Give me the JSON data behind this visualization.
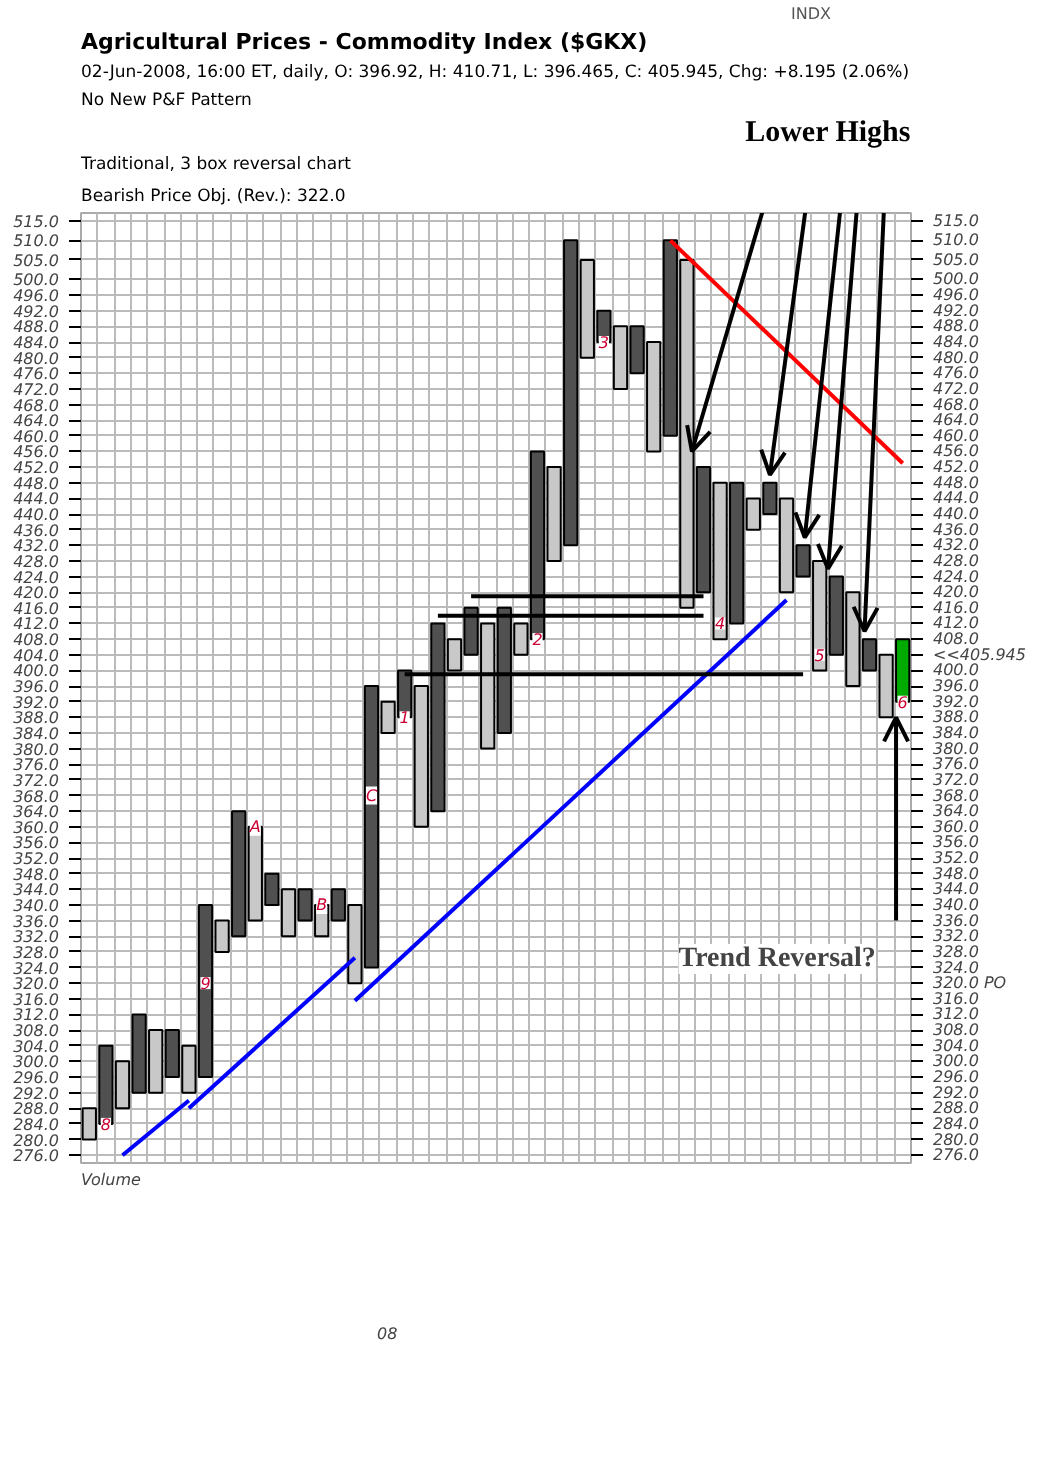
{
  "chart_data": {
    "type": "bar",
    "title": "Agricultural Prices - Commodity Index ($GKX)",
    "subtitle": "02-Jun-2008, 16:00 ET, daily, O: 396.92, H: 410.71, L: 396.465, C: 405.945, Chg: +8.195 (2.06%)",
    "categories": [
      null,
      null,
      null,
      null,
      null,
      null,
      null,
      null,
      null,
      null,
      null,
      null,
      null,
      null,
      null,
      null,
      null,
      null,
      null,
      null,
      null,
      null,
      null,
      null,
      null,
      null,
      null,
      null,
      null,
      null,
      null,
      null,
      null,
      null,
      null,
      null,
      null,
      null,
      null,
      null,
      null,
      null,
      null,
      null,
      null,
      null,
      null,
      null,
      null,
      null
    ],
    "series": [
      {
        "base": [
          280,
          284,
          288,
          292,
          292,
          296,
          292,
          296,
          328,
          332,
          336,
          340,
          332,
          336,
          332,
          336,
          320,
          324,
          384,
          388,
          360,
          364,
          400,
          404,
          380,
          384,
          404,
          408,
          428,
          432,
          480,
          484,
          472,
          476,
          456,
          460,
          416,
          420,
          408,
          412,
          436,
          440,
          420,
          424,
          400,
          404,
          396,
          400,
          388,
          392
        ],
        "values": [
          8,
          20,
          12,
          20,
          16,
          12,
          12,
          44,
          8,
          32,
          24,
          8,
          12,
          8,
          8,
          8,
          20,
          72,
          8,
          12,
          36,
          48,
          8,
          12,
          32,
          32,
          8,
          48,
          24,
          78,
          25,
          8,
          16,
          12,
          28,
          50,
          89,
          32,
          40,
          36,
          8,
          8,
          24,
          8,
          28,
          20,
          24,
          8,
          16,
          16
        ],
        "colors": [
          "#c8c8c8",
          "#505050",
          "#c8c8c8",
          "#505050",
          "#c8c8c8",
          "#505050",
          "#c8c8c8",
          "#505050",
          "#c8c8c8",
          "#505050",
          "#c8c8c8",
          "#505050",
          "#c8c8c8",
          "#505050",
          "#c8c8c8",
          "#505050",
          "#c8c8c8",
          "#505050",
          "#c8c8c8",
          "#505050",
          "#c8c8c8",
          "#505050",
          "#c8c8c8",
          "#505050",
          "#c8c8c8",
          "#505050",
          "#c8c8c8",
          "#505050",
          "#c8c8c8",
          "#505050",
          "#c8c8c8",
          "#505050",
          "#c8c8c8",
          "#505050",
          "#c8c8c8",
          "#505050",
          "#c8c8c8",
          "#505050",
          "#c8c8c8",
          "#505050",
          "#c8c8c8",
          "#505050",
          "#c8c8c8",
          "#505050",
          "#c8c8c8",
          "#505050",
          "#c8c8c8",
          "#505050",
          "#c8c8c8",
          "#00aa00"
        ]
      },
      {
        "type": "line",
        "color": "#0000ff",
        "values": [
          null,
          null,
          276,
          null,
          null,
          null,
          290,
          null,
          null,
          null,
          null,
          null,
          null,
          null,
          null,
          null,
          null,
          null,
          null,
          null,
          null,
          null,
          null,
          null,
          null,
          null,
          null,
          null,
          null,
          null,
          null,
          null,
          null,
          null,
          null,
          null,
          null,
          null,
          null,
          null,
          null,
          null,
          null,
          null,
          null,
          null,
          null,
          null,
          null,
          null
        ]
      },
      {
        "type": "line",
        "color": "#0000ff",
        "values": [
          null,
          null,
          null,
          null,
          null,
          null,
          288,
          null,
          null,
          null,
          null,
          null,
          null,
          null,
          null,
          null,
          326.5,
          null,
          null,
          null,
          null,
          null,
          null,
          null,
          null,
          null,
          null,
          null,
          null,
          null,
          null,
          null,
          null,
          null,
          null,
          null,
          null,
          null,
          null,
          null,
          null,
          null,
          null,
          null,
          null,
          null,
          null,
          null,
          null,
          null
        ]
      },
      {
        "type": "line",
        "color": "#0000ff",
        "values": [
          null,
          null,
          null,
          null,
          null,
          null,
          null,
          null,
          null,
          null,
          null,
          null,
          null,
          null,
          null,
          null,
          315.5,
          null,
          null,
          null,
          null,
          null,
          null,
          null,
          null,
          null,
          null,
          null,
          null,
          null,
          null,
          null,
          null,
          null,
          null,
          null,
          null,
          null,
          null,
          null,
          null,
          null,
          418,
          null,
          null,
          null,
          null,
          null,
          null,
          null
        ]
      },
      {
        "type": "line",
        "color": "#ff0000",
        "values": [
          null,
          null,
          null,
          null,
          null,
          null,
          null,
          null,
          null,
          null,
          null,
          null,
          null,
          null,
          null,
          null,
          null,
          null,
          null,
          null,
          null,
          null,
          null,
          null,
          null,
          null,
          null,
          null,
          null,
          null,
          null,
          null,
          null,
          null,
          null,
          510,
          null,
          null,
          null,
          null,
          null,
          null,
          null,
          null,
          null,
          null,
          null,
          null,
          null,
          453
        ]
      },
      {
        "type": "line",
        "color": "#000000",
        "values": [
          null,
          null,
          null,
          null,
          null,
          null,
          null,
          null,
          null,
          null,
          null,
          null,
          null,
          null,
          null,
          null,
          null,
          null,
          null,
          null,
          null,
          null,
          null,
          419,
          null,
          null,
          null,
          null,
          null,
          null,
          null,
          null,
          null,
          null,
          null,
          null,
          null,
          419,
          null,
          null,
          null,
          null,
          null,
          null,
          null,
          null,
          null,
          null,
          null,
          null
        ]
      },
      {
        "type": "line",
        "color": "#000000",
        "values": [
          null,
          null,
          null,
          null,
          null,
          null,
          null,
          null,
          null,
          null,
          null,
          null,
          null,
          null,
          null,
          null,
          null,
          null,
          null,
          null,
          null,
          414,
          null,
          null,
          null,
          null,
          null,
          null,
          null,
          null,
          null,
          null,
          null,
          null,
          null,
          null,
          null,
          414,
          null,
          null,
          null,
          null,
          null,
          null,
          null,
          null,
          null,
          null,
          null,
          null
        ]
      },
      {
        "type": "line",
        "color": "#000000",
        "values": [
          null,
          null,
          null,
          null,
          null,
          null,
          null,
          null,
          null,
          null,
          null,
          null,
          null,
          null,
          null,
          null,
          null,
          null,
          null,
          399,
          null,
          null,
          null,
          null,
          null,
          null,
          null,
          null,
          null,
          null,
          null,
          null,
          null,
          null,
          null,
          null,
          null,
          null,
          null,
          null,
          null,
          null,
          null,
          399,
          null,
          null,
          null,
          null,
          null,
          null
        ]
      }
    ],
    "tick_labels": "y",
    "ylim": [
      274,
      517
    ],
    "yticks": [
      {
        "value": 276,
        "label": "276.0"
      },
      {
        "value": 280,
        "label": "280.0"
      },
      {
        "value": 284,
        "label": "284.0"
      },
      {
        "value": 288,
        "label": "288.0"
      },
      {
        "value": 292,
        "label": "292.0"
      },
      {
        "value": 296,
        "label": "296.0"
      },
      {
        "value": 300,
        "label": "300.0"
      },
      {
        "value": 304,
        "label": "304.0"
      },
      {
        "value": 308,
        "label": "308.0"
      },
      {
        "value": 312,
        "label": "312.0"
      },
      {
        "value": 316,
        "label": "316.0"
      },
      {
        "value": 320,
        "label": "320.0"
      },
      {
        "value": 324,
        "label": "324.0"
      },
      {
        "value": 328,
        "label": "328.0"
      },
      {
        "value": 332,
        "label": "332.0"
      },
      {
        "value": 336,
        "label": "336.0"
      },
      {
        "value": 340,
        "label": "340.0"
      },
      {
        "value": 344,
        "label": "344.0"
      },
      {
        "value": 348,
        "label": "348.0"
      },
      {
        "value": 352,
        "label": "352.0"
      },
      {
        "value": 356,
        "label": "356.0"
      },
      {
        "value": 360,
        "label": "360.0"
      },
      {
        "value": 364,
        "label": "364.0"
      },
      {
        "value": 368,
        "label": "368.0"
      },
      {
        "value": 372,
        "label": "372.0"
      },
      {
        "value": 376,
        "label": "376.0"
      },
      {
        "value": 380,
        "label": "380.0"
      },
      {
        "value": 384,
        "label": "384.0"
      },
      {
        "value": 388,
        "label": "388.0"
      },
      {
        "value": 392,
        "label": "392.0"
      },
      {
        "value": 396,
        "label": "396.0"
      },
      {
        "value": 400,
        "label": "400.0"
      },
      {
        "value": 404,
        "label": "404.0"
      },
      {
        "value": 408,
        "label": "408.0"
      },
      {
        "value": 412,
        "label": "412.0"
      },
      {
        "value": 416,
        "label": "416.0"
      },
      {
        "value": 420,
        "label": "420.0"
      },
      {
        "value": 424,
        "label": "424.0"
      },
      {
        "value": 428,
        "label": "428.0"
      },
      {
        "value": 432,
        "label": "432.0"
      },
      {
        "value": 436,
        "label": "436.0"
      },
      {
        "value": 440,
        "label": "440.0"
      },
      {
        "value": 444,
        "label": "444.0"
      },
      {
        "value": 448,
        "label": "448.0"
      },
      {
        "value": 452,
        "label": "452.0"
      },
      {
        "value": 456,
        "label": "456.0"
      },
      {
        "value": 460,
        "label": "460.0"
      },
      {
        "value": 464,
        "label": "464.0"
      },
      {
        "value": 468,
        "label": "468.0"
      },
      {
        "value": 472,
        "label": "472.0"
      },
      {
        "value": 476,
        "label": "476.0"
      },
      {
        "value": 480,
        "label": "480.0"
      },
      {
        "value": 484,
        "label": "484.0"
      },
      {
        "value": 488,
        "label": "488.0"
      },
      {
        "value": 492,
        "label": "492.0"
      },
      {
        "value": 496,
        "label": "496.0"
      },
      {
        "value": 500,
        "label": "500.0"
      },
      {
        "value": 505,
        "label": "505.0"
      },
      {
        "value": 510,
        "label": "510.0"
      },
      {
        "value": 515,
        "label": "515.0"
      }
    ],
    "y2lim": [
      274,
      517
    ],
    "y2ticks": [
      {
        "value": 276,
        "label": "276.0"
      },
      {
        "value": 280,
        "label": "280.0"
      },
      {
        "value": 284,
        "label": "284.0"
      },
      {
        "value": 288,
        "label": "288.0"
      },
      {
        "value": 292,
        "label": "292.0"
      },
      {
        "value": 296,
        "label": "296.0"
      },
      {
        "value": 300,
        "label": "300.0"
      },
      {
        "value": 304,
        "label": "304.0"
      },
      {
        "value": 308,
        "label": "308.0"
      },
      {
        "value": 312,
        "label": "312.0"
      },
      {
        "value": 316,
        "label": "316.0"
      },
      {
        "value": 320,
        "label": "320.0 PO"
      },
      {
        "value": 324,
        "label": "324.0"
      },
      {
        "value": 328,
        "label": "328.0"
      },
      {
        "value": 332,
        "label": "332.0"
      },
      {
        "value": 336,
        "label": "336.0"
      },
      {
        "value": 340,
        "label": "340.0"
      },
      {
        "value": 344,
        "label": "344.0"
      },
      {
        "value": 348,
        "label": "348.0"
      },
      {
        "value": 352,
        "label": "352.0"
      },
      {
        "value": 356,
        "label": "356.0"
      },
      {
        "value": 360,
        "label": "360.0"
      },
      {
        "value": 364,
        "label": "364.0"
      },
      {
        "value": 368,
        "label": "368.0"
      },
      {
        "value": 372,
        "label": "372.0"
      },
      {
        "value": 376,
        "label": "376.0"
      },
      {
        "value": 380,
        "label": "380.0"
      },
      {
        "value": 384,
        "label": "384.0"
      },
      {
        "value": 388,
        "label": "388.0"
      },
      {
        "value": 392,
        "label": "392.0"
      },
      {
        "value": 396,
        "label": "396.0"
      },
      {
        "value": 400,
        "label": "400.0"
      },
      {
        "value": 404,
        "label": "<<405.945"
      },
      {
        "value": 408,
        "label": "408.0"
      },
      {
        "value": 412,
        "label": "412.0"
      },
      {
        "value": 416,
        "label": "416.0"
      },
      {
        "value": 420,
        "label": "420.0"
      },
      {
        "value": 424,
        "label": "424.0"
      },
      {
        "value": 428,
        "label": "428.0"
      },
      {
        "value": 432,
        "label": "432.0"
      },
      {
        "value": 436,
        "label": "436.0"
      },
      {
        "value": 440,
        "label": "440.0"
      },
      {
        "value": 444,
        "label": "444.0"
      },
      {
        "value": 448,
        "label": "448.0"
      },
      {
        "value": 452,
        "label": "452.0"
      },
      {
        "value": 456,
        "label": "456.0"
      },
      {
        "value": 460,
        "label": "460.0"
      },
      {
        "value": 464,
        "label": "464.0"
      },
      {
        "value": 468,
        "label": "468.0"
      },
      {
        "value": 472,
        "label": "472.0"
      },
      {
        "value": 476,
        "label": "476.0"
      },
      {
        "value": 480,
        "label": "480.0"
      },
      {
        "value": 484,
        "label": "484.0"
      },
      {
        "value": 488,
        "label": "488.0"
      },
      {
        "value": 492,
        "label": "492.0"
      },
      {
        "value": 496,
        "label": "496.0"
      },
      {
        "value": 500,
        "label": "500.0"
      },
      {
        "value": 505,
        "label": "505.0"
      },
      {
        "value": 510,
        "label": "510.0"
      },
      {
        "value": 515,
        "label": "515.0"
      }
    ],
    "grid": true,
    "annotations": [
      "INDX",
      "No New P&F Pattern",
      "Traditional, 3 box reversal chart",
      "Bearish Price Obj. (Rev.): 322.0",
      "Lower Highs",
      "Trend Reversal?",
      "Volume",
      "08",
      "8",
      "9",
      "A",
      "B",
      "C",
      "1",
      "2",
      "3",
      "4",
      "5",
      "6"
    ]
  }
}
